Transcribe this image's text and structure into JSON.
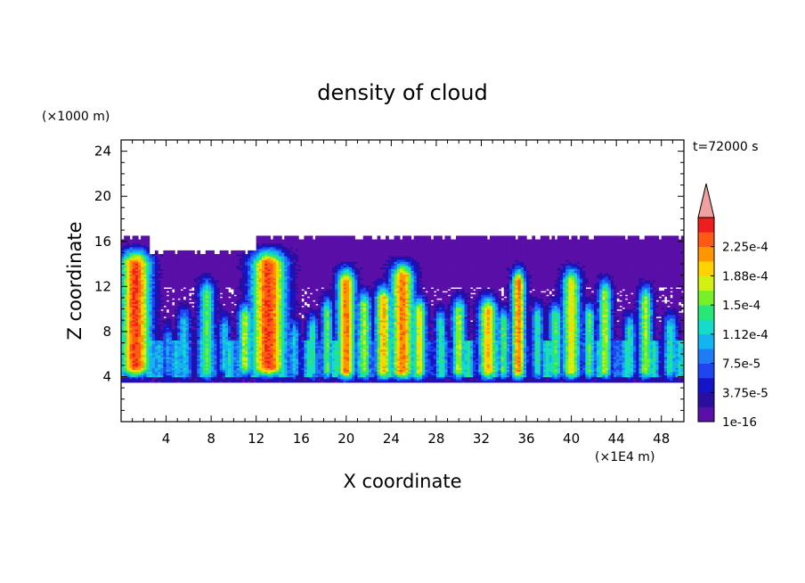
{
  "chart_data": {
    "type": "heatmap",
    "title": "density of cloud",
    "xlabel": "X coordinate",
    "ylabel": "Z coordinate",
    "x_unit": "(×1E4 m)",
    "y_unit": "(×1000 m)",
    "time_label": "t=72000 s",
    "xlim": [
      0,
      50
    ],
    "ylim": [
      0,
      25
    ],
    "x_ticks": [
      4,
      8,
      12,
      16,
      20,
      24,
      28,
      32,
      36,
      40,
      44,
      48
    ],
    "y_ticks": [
      4,
      8,
      12,
      16,
      20,
      24
    ],
    "colorbar": {
      "levels": [
        1e-16,
        1.875e-05,
        3.75e-05,
        5.625e-05,
        7.5e-05,
        9.375e-05,
        0.000112,
        0.000131,
        0.00015,
        0.000169,
        0.000188,
        0.000206,
        0.000225,
        0.000244
      ],
      "tick_labels": [
        "1e-16",
        "3.75e-5",
        "7.5e-5",
        "1.12e-4",
        "1.5e-4",
        "1.88e-4",
        "2.25e-4"
      ],
      "colors": [
        "#5a0fa8",
        "#2a0ea0",
        "#1414c8",
        "#1e46f0",
        "#1e7df5",
        "#14b4f0",
        "#14dcc8",
        "#28e678",
        "#78f028",
        "#d2f014",
        "#ffd200",
        "#ff9600",
        "#ff5a14",
        "#ee1e1e"
      ],
      "extend_color": "#f0a0a0"
    },
    "cloud_base": 3.5,
    "cloud_top": 16.5,
    "columns": [
      {
        "x": 1.3,
        "w": 1.3,
        "base": 4.8,
        "top": 15.6,
        "peak": 13
      },
      {
        "x": 4.2,
        "w": 0.5,
        "base": 4.5,
        "top": 9.0,
        "peak": 5
      },
      {
        "x": 5.6,
        "w": 0.6,
        "base": 4.5,
        "top": 10.5,
        "peak": 6
      },
      {
        "x": 7.6,
        "w": 0.7,
        "base": 4.5,
        "top": 13.0,
        "peak": 8
      },
      {
        "x": 9.2,
        "w": 0.5,
        "base": 4.8,
        "top": 10.0,
        "peak": 6
      },
      {
        "x": 11.0,
        "w": 0.6,
        "base": 4.8,
        "top": 11.0,
        "peak": 9
      },
      {
        "x": 13.1,
        "w": 1.5,
        "base": 4.8,
        "top": 15.6,
        "peak": 13
      },
      {
        "x": 15.4,
        "w": 0.5,
        "base": 4.5,
        "top": 9.5,
        "peak": 6
      },
      {
        "x": 17.0,
        "w": 0.5,
        "base": 4.5,
        "top": 10.0,
        "peak": 7
      },
      {
        "x": 18.3,
        "w": 0.5,
        "base": 4.5,
        "top": 11.5,
        "peak": 8
      },
      {
        "x": 20.0,
        "w": 0.8,
        "base": 4.5,
        "top": 14.0,
        "peak": 12
      },
      {
        "x": 21.6,
        "w": 0.6,
        "base": 4.5,
        "top": 12.0,
        "peak": 9
      },
      {
        "x": 23.3,
        "w": 0.7,
        "base": 4.5,
        "top": 12.5,
        "peak": 11
      },
      {
        "x": 25.0,
        "w": 1.0,
        "base": 4.5,
        "top": 14.5,
        "peak": 12
      },
      {
        "x": 26.5,
        "w": 0.6,
        "base": 4.5,
        "top": 11.5,
        "peak": 10
      },
      {
        "x": 28.4,
        "w": 0.5,
        "base": 4.5,
        "top": 10.5,
        "peak": 7
      },
      {
        "x": 30.0,
        "w": 0.6,
        "base": 4.5,
        "top": 11.5,
        "peak": 9
      },
      {
        "x": 32.6,
        "w": 0.8,
        "base": 4.5,
        "top": 11.5,
        "peak": 11
      },
      {
        "x": 34.0,
        "w": 0.5,
        "base": 4.5,
        "top": 10.5,
        "peak": 8
      },
      {
        "x": 35.3,
        "w": 0.6,
        "base": 4.5,
        "top": 14.0,
        "peak": 12
      },
      {
        "x": 37.0,
        "w": 0.5,
        "base": 4.5,
        "top": 11.0,
        "peak": 7
      },
      {
        "x": 38.6,
        "w": 0.6,
        "base": 4.5,
        "top": 11.0,
        "peak": 8
      },
      {
        "x": 40.0,
        "w": 0.8,
        "base": 4.5,
        "top": 14.0,
        "peak": 10
      },
      {
        "x": 41.6,
        "w": 0.5,
        "base": 4.5,
        "top": 11.0,
        "peak": 8
      },
      {
        "x": 43.0,
        "w": 0.6,
        "base": 4.5,
        "top": 13.0,
        "peak": 9
      },
      {
        "x": 45.2,
        "w": 0.5,
        "base": 4.5,
        "top": 10.0,
        "peak": 7
      },
      {
        "x": 46.6,
        "w": 0.6,
        "base": 4.5,
        "top": 12.5,
        "peak": 9
      },
      {
        "x": 48.8,
        "w": 0.6,
        "base": 4.5,
        "top": 10.0,
        "peak": 7
      }
    ]
  }
}
